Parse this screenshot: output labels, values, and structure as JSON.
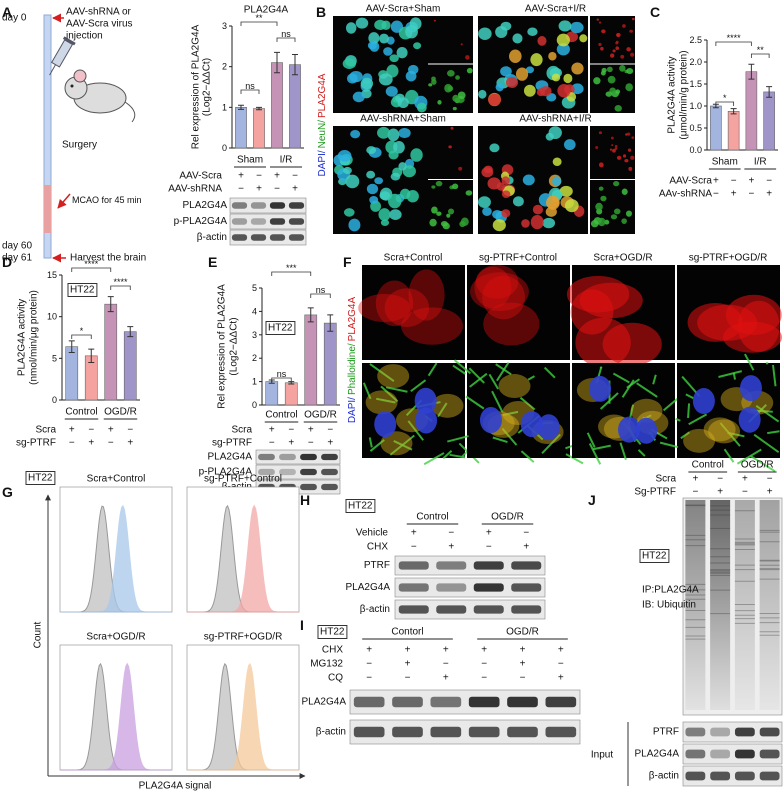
{
  "panel_labels": [
    "A",
    "B",
    "C",
    "D",
    "E",
    "F",
    "G",
    "H",
    "I",
    "J"
  ],
  "timeline": {
    "start": "day 0",
    "injection": [
      "AAV-shRNA or",
      "AAV-Scra virus",
      "injection"
    ],
    "surgery": "Surgery",
    "mcao": "MCAO for 45 min",
    "day60": "day 60",
    "day61": "day 61",
    "harvest": "Harvest the brain"
  },
  "chart_data": [
    {
      "type": "bar",
      "title": "PLA2G4A",
      "y_label": [
        "Rel expression of PLA2G4A",
        "(Log2−ΔΔCt)"
      ],
      "categories": [
        null,
        null,
        null,
        null
      ],
      "values": [
        1.0,
        0.97,
        2.1,
        2.05
      ],
      "errors": [
        0.05,
        0.03,
        0.25,
        0.25
      ],
      "colors": [
        "#a3b4df",
        "#f4a3a0",
        "#c593b6",
        "#a095c9"
      ],
      "ylim": [
        0,
        3
      ],
      "yticks": [
        0,
        1,
        2,
        3
      ],
      "groups": [
        "Sham",
        "I/R"
      ],
      "significance": [
        "**",
        "ns",
        "ns"
      ],
      "treatments": [
        {
          "name": "AAV-Scra",
          "signs": [
            "+",
            "−",
            "+",
            "−"
          ]
        },
        {
          "name": "AAV-shRNA",
          "signs": [
            "−",
            "+",
            "−",
            "+"
          ]
        }
      ],
      "blot_rows": [
        "PLA2G4A",
        "p-PLA2G4A",
        "β-actin"
      ]
    },
    {
      "type": "bar",
      "y_label": [
        "PLA2G4A activity",
        "(μmol/min/g protein)"
      ],
      "categories": [
        null,
        null,
        null,
        null
      ],
      "values": [
        1.0,
        0.88,
        1.78,
        1.32
      ],
      "errors": [
        0.04,
        0.06,
        0.17,
        0.12
      ],
      "colors": [
        "#a3b4df",
        "#f4a3a0",
        "#c593b6",
        "#a095c9"
      ],
      "ylim": [
        0,
        2.5
      ],
      "yticks": [
        {
          "value": 0,
          "label": "0.0"
        },
        {
          "value": 0.5,
          "label": "0.5"
        },
        {
          "value": 1,
          "label": "1.0"
        },
        {
          "value": 1.5,
          "label": "1.5"
        },
        {
          "value": 2,
          "label": "2.0"
        },
        {
          "value": 2.5,
          "label": "2.5"
        }
      ],
      "groups": [
        "Sham",
        "I/R"
      ],
      "significance": [
        "*",
        "****",
        "**"
      ],
      "treatments": [
        {
          "name": "AAV-Scra",
          "signs": [
            "+",
            "−",
            "+",
            "−"
          ]
        },
        {
          "name": "AAv-shRNA",
          "signs": [
            "−",
            "+",
            "−",
            "+"
          ]
        }
      ]
    },
    {
      "type": "bar",
      "label": "HT22",
      "y_label": [
        "PLA2G4A activity",
        "(nmol/min/μg protein)"
      ],
      "categories": [
        null,
        null,
        null,
        null
      ],
      "values": [
        6.4,
        5.3,
        11.5,
        8.2
      ],
      "errors": [
        0.7,
        0.8,
        0.9,
        0.6
      ],
      "colors": [
        "#a3b4df",
        "#f4a3a0",
        "#c593b6",
        "#a095c9"
      ],
      "ylim": [
        0,
        15
      ],
      "yticks": [
        0,
        5,
        10,
        15
      ],
      "groups": [
        "Control",
        "OGD/R"
      ],
      "significance": [
        "*",
        "****",
        "****"
      ],
      "treatments": [
        {
          "name": "Scra",
          "signs": [
            "+",
            "−",
            "+",
            "−"
          ]
        },
        {
          "name": "sg-PTRF",
          "signs": [
            "−",
            "+",
            "−",
            "+"
          ]
        }
      ]
    },
    {
      "type": "bar",
      "label": "HT22",
      "y_label": [
        "Rel expression of PLA2G4A",
        "(Log2−ΔΔCt)"
      ],
      "categories": [
        null,
        null,
        null,
        null
      ],
      "values": [
        1.0,
        0.95,
        3.85,
        3.5
      ],
      "errors": [
        0.07,
        0.05,
        0.3,
        0.35
      ],
      "colors": [
        "#a3b4df",
        "#f4a3a0",
        "#c593b6",
        "#a095c9"
      ],
      "ylim": [
        0,
        5
      ],
      "yticks": [
        0,
        1,
        2,
        3,
        4,
        5
      ],
      "groups": [
        "Control",
        "OGD/R"
      ],
      "significance": [
        "***",
        "ns",
        "ns"
      ],
      "treatments": [
        {
          "name": "Scra",
          "signs": [
            "+",
            "−",
            "+",
            "−"
          ]
        },
        {
          "name": "sg-PTRF",
          "signs": [
            "−",
            "+",
            "−",
            "+"
          ]
        }
      ],
      "blot_rows": [
        "PLA2G4A",
        "p-PLA2G4A",
        "β-actin"
      ]
    }
  ],
  "panel_b": {
    "conditions": [
      "AAV-Scra+Sham",
      "AAV-Scra+I/R",
      "AAV-shRNA+Sham",
      "AAV-shRNA+I/R"
    ],
    "stain": [
      "DAPI/",
      "NeuN/",
      "PLA2G4A"
    ]
  },
  "panel_f": {
    "conditions": [
      "Scra+Control",
      "sg-PTRF+Control",
      "Scra+OGD/R",
      "sg-PTRF+OGD/R"
    ],
    "stain": [
      "DAPI/",
      "Phalloidine/",
      "PLA2G4A"
    ]
  },
  "panel_g": {
    "cell_line": "HT22",
    "conditions": [
      "Scra+Control",
      "sg-PTRF+Control",
      "Scra+OGD/R",
      "sg-PTRF+OGD/R"
    ],
    "y_label": "Count",
    "x_label": "PLA2G4A signal"
  },
  "panel_h": {
    "cell_line": "HT22",
    "groups": [
      "Control",
      "OGD/R"
    ],
    "treatments": [
      {
        "name": "Vehicle",
        "signs": [
          "+",
          "−",
          "+",
          "−"
        ]
      },
      {
        "name": "CHX",
        "signs": [
          "−",
          "+",
          "−",
          "+"
        ]
      }
    ],
    "blot_rows": [
      "PTRF",
      "PLA2G4A",
      "β-actin"
    ]
  },
  "panel_i": {
    "cell_line": "HT22",
    "groups": [
      "Contorl",
      "OGD/R"
    ],
    "treatments": [
      {
        "name": "CHX",
        "signs": [
          "+",
          "+",
          "+",
          "+",
          "+",
          "+"
        ]
      },
      {
        "name": "MG132",
        "signs": [
          "−",
          "+",
          "−",
          "−",
          "+",
          "−"
        ]
      },
      {
        "name": "CQ",
        "signs": [
          "−",
          "−",
          "+",
          "−",
          "−",
          "+"
        ]
      }
    ],
    "blot_rows": [
      "PLA2G4A",
      "β-actin"
    ]
  },
  "panel_j": {
    "groups": [
      "Control",
      "OGD/R"
    ],
    "treatments": [
      {
        "name": "Scra",
        "signs": [
          "+",
          "−",
          "+",
          "−"
        ]
      },
      {
        "name": "Sg-PTRF",
        "signs": [
          "−",
          "+",
          "−",
          "+"
        ]
      }
    ],
    "cell_line": "HT22",
    "ip": "IP:PLA2G4A",
    "ib": "IB: Ubiquitin",
    "input": "Input",
    "blot_rows": [
      "PTRF",
      "PLA2G4A",
      "β-actin"
    ]
  }
}
